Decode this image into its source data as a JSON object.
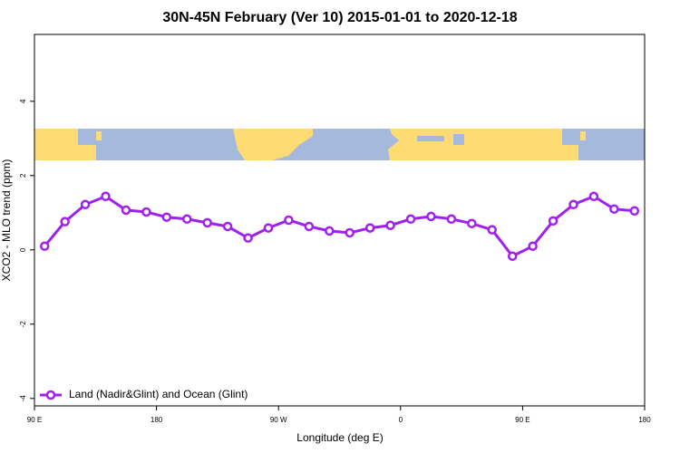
{
  "chart_data": {
    "type": "line",
    "title": "30N-45N February (Ver 10)   2015-01-01 to 2020-12-18",
    "xlabel": "Longitude (deg E)",
    "ylabel": "XCO2 - MLO trend (ppm)",
    "x": [
      97.5,
      112.5,
      127.5,
      142.5,
      157.5,
      172.5,
      187.5,
      202.5,
      217.5,
      232.5,
      247.5,
      262.5,
      277.5,
      292.5,
      307.5,
      322.5,
      337.5,
      352.5,
      367.5,
      382.5,
      397.5,
      412.5,
      427.5,
      442.5,
      457.5,
      472.5,
      487.5,
      502.5,
      517.5,
      532.5
    ],
    "series": [
      {
        "name": "Land (Nadir&Glint) and Ocean (Glint)",
        "color": "#a020f0",
        "values": [
          0.1,
          0.76,
          1.22,
          1.44,
          1.07,
          1.02,
          0.88,
          0.83,
          0.73,
          0.63,
          0.32,
          0.59,
          0.8,
          0.63,
          0.51,
          0.46,
          0.59,
          0.66,
          0.83,
          0.9,
          0.83,
          0.71,
          0.54,
          -0.17,
          0.1,
          0.78,
          1.22,
          1.44,
          1.1,
          1.05
        ]
      }
    ],
    "xlim": [
      90,
      540
    ],
    "xticks": [
      {
        "value": 90,
        "label": "90 E"
      },
      180,
      {
        "value": 270,
        "label": "90 W"
      },
      {
        "value": 360,
        "label": "0"
      },
      {
        "value": 450,
        "label": "90 E"
      },
      {
        "value": 540,
        "label": "180"
      }
    ],
    "ylim": [
      -4.2,
      5.8
    ],
    "yticks": [
      -4,
      -2,
      0,
      2,
      4
    ],
    "legend": "bottom-left"
  }
}
